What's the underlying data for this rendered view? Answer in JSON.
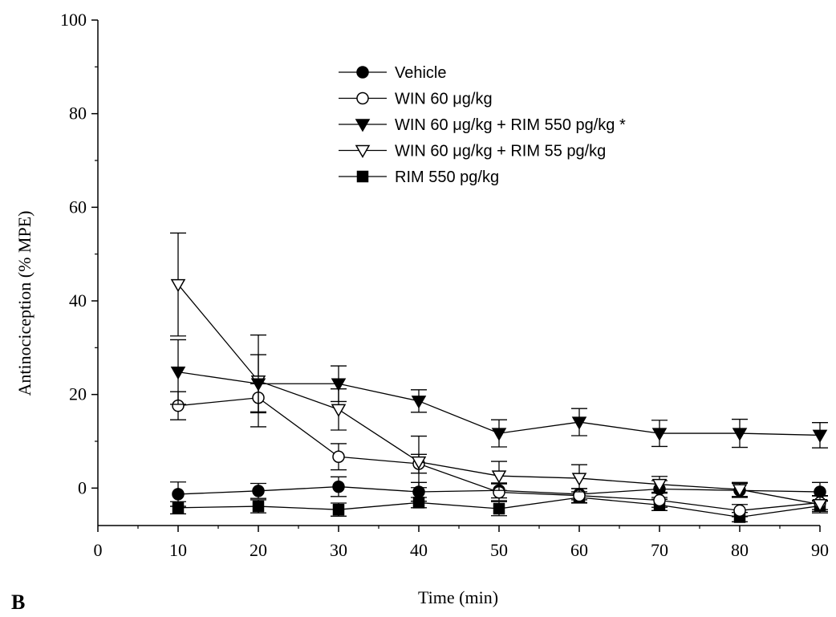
{
  "panel_label": "B",
  "chart_data": {
    "type": "line",
    "title": "",
    "xlabel": "Time (min)",
    "ylabel": "Antinociception (% MPE)",
    "xlim": [
      0,
      90
    ],
    "ylim": [
      -8,
      100
    ],
    "x_ticks": [
      0,
      10,
      20,
      30,
      40,
      50,
      60,
      70,
      80,
      90
    ],
    "y_ticks": [
      0,
      20,
      40,
      60,
      80,
      100
    ],
    "x": [
      10,
      20,
      30,
      40,
      50,
      60,
      70,
      80,
      90
    ],
    "grid": false,
    "legend_position": "top-center",
    "series": [
      {
        "name": "Vehicle",
        "marker": "circle-filled",
        "values": [
          -1.3,
          -0.6,
          0.3,
          -0.8,
          -0.5,
          -1.3,
          -0.2,
          -0.5,
          -0.8
        ],
        "errors": [
          2.6,
          1.6,
          2.1,
          2.0,
          1.6,
          1.2,
          1.8,
          1.5,
          2.0
        ]
      },
      {
        "name": "WIN 60 μg/kg",
        "marker": "circle-open",
        "values": [
          17.6,
          19.3,
          6.7,
          5.2,
          -0.9,
          -1.6,
          -2.6,
          -4.8,
          -3.1
        ],
        "errors": [
          3.0,
          3.0,
          2.8,
          2.0,
          1.8,
          1.5,
          1.5,
          1.3,
          1.5
        ]
      },
      {
        "name": "WIN 60 μg/kg + RIM 550 pg/kg *",
        "marker": "triangle-down-filled",
        "values": [
          24.8,
          22.3,
          22.3,
          18.6,
          11.7,
          14.1,
          11.7,
          11.7,
          11.3
        ],
        "errors": [
          6.9,
          6.2,
          3.8,
          2.4,
          2.9,
          2.9,
          2.8,
          3.0,
          2.7
        ]
      },
      {
        "name": "WIN 60 μg/kg + RIM 55 pg/kg",
        "marker": "triangle-down-open",
        "values": [
          43.5,
          22.9,
          16.8,
          5.6,
          2.6,
          2.1,
          0.8,
          -0.3,
          -3.5
        ],
        "errors": [
          11.0,
          9.8,
          4.4,
          5.5,
          3.1,
          2.9,
          1.7,
          1.5,
          1.8
        ]
      },
      {
        "name": "RIM 550 pg/kg",
        "marker": "square-filled",
        "values": [
          -4.2,
          -3.9,
          -4.6,
          -3.1,
          -4.4,
          -2.0,
          -3.6,
          -6.2,
          -3.8
        ],
        "errors": [
          1.3,
          1.4,
          1.4,
          1.1,
          1.5,
          1.2,
          1.2,
          1.0,
          1.2
        ]
      }
    ]
  }
}
